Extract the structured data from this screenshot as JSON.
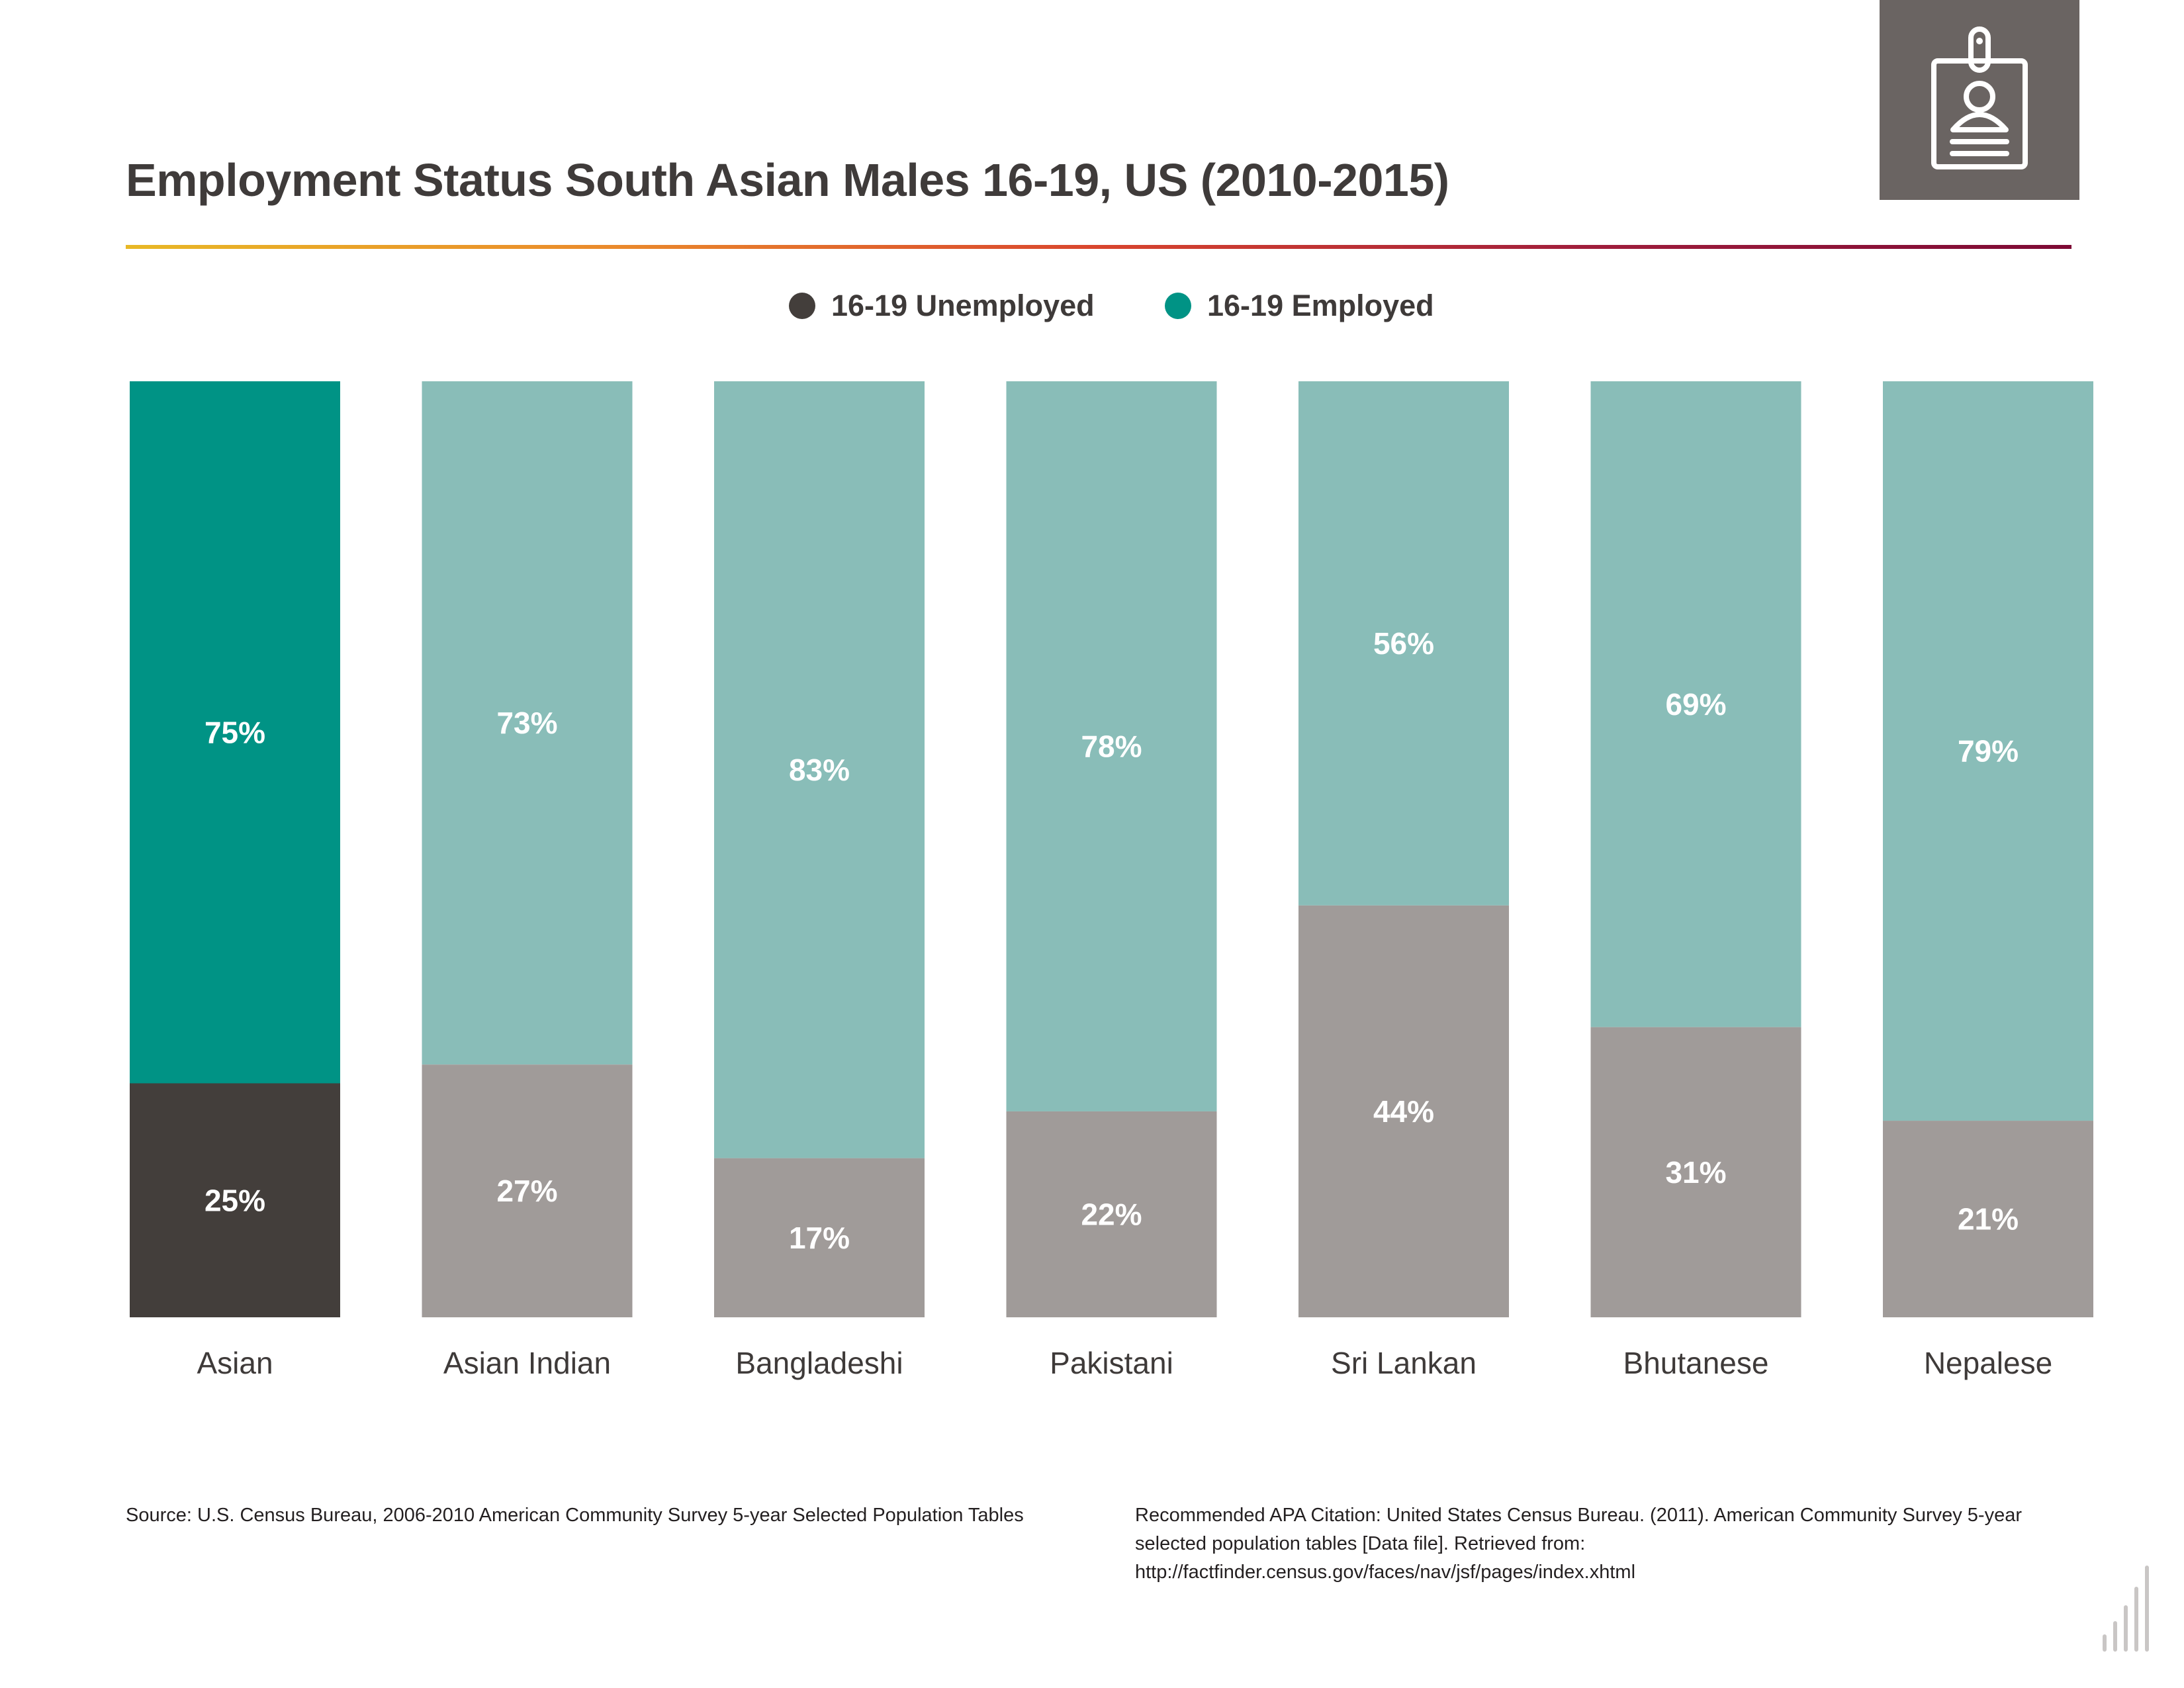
{
  "title": "Employment Status South Asian Males 16-19, US (2010-2015)",
  "icon": "id-badge-icon",
  "colors": {
    "unemployed_highlight": "#433e3b",
    "employed_highlight": "#009385",
    "unemployed": "#a09b99",
    "employed": "#89bdb8",
    "label": "#ffffff",
    "icon_box": "#6a6462",
    "rule_gradient": [
      "#e8b826",
      "#ea8a2c",
      "#d9452e",
      "#a01e3c",
      "#7d0a35"
    ]
  },
  "legend": {
    "unemployed_label": "16-19 Unemployed",
    "employed_label": "16-19 Employed"
  },
  "chart_data": {
    "type": "bar",
    "stacked": true,
    "percent": true,
    "categories": [
      "Asian",
      "Asian Indian",
      "Bangladeshi",
      "Pakistani",
      "Sri Lankan",
      "Bhutanese",
      "Nepalese"
    ],
    "series": [
      {
        "name": "16-19 Unemployed",
        "values": [
          25,
          27,
          17,
          22,
          44,
          31,
          21
        ],
        "labels": [
          "25%",
          "27%",
          "17%",
          "22%",
          "44%",
          "31%",
          "21%"
        ]
      },
      {
        "name": "16-19 Employed",
        "values": [
          75,
          73,
          83,
          78,
          56,
          69,
          79
        ],
        "labels": [
          "75%",
          "73%",
          "83%",
          "78%",
          "56%",
          "69%",
          "79%"
        ]
      }
    ],
    "highlight_category": "Asian",
    "ylim": [
      0,
      100
    ],
    "legend_position": "top-center",
    "grid": false
  },
  "source": "Source:  U.S. Census Bureau, 2006-2010 American Community Survey 5-year Selected Population Tables",
  "citation": "Recommended APA Citation: United States Census Bureau. (2011). American Community Survey 5-year selected population tables [Data file]. Retrieved from: http://factfinder.census.gov/faces/nav/jsf/pages/index.xhtml",
  "corner_logo": "bar-chart-logo-icon"
}
